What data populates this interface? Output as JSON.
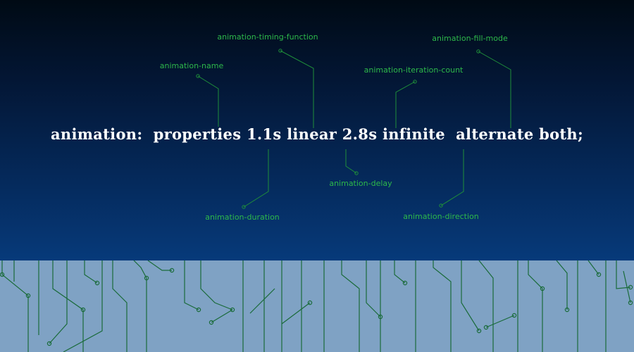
{
  "code": {
    "text": "animation:  properties 1.1s linear 2.8s infinite  alternate both;"
  },
  "labels": {
    "timing_function": "animation-timing-function",
    "fill_mode": "animation-fill-mode",
    "name": "animation-name",
    "iteration_count": "animation-iteration-count",
    "delay": "animation-delay",
    "duration": "animation-duration",
    "direction": "animation-direction"
  },
  "colors": {
    "label_green": "#2db84a",
    "line_green": "#1f8f3a",
    "circuit_green": "#1a6b3a",
    "bottom_panel": "#7fa2c4"
  }
}
